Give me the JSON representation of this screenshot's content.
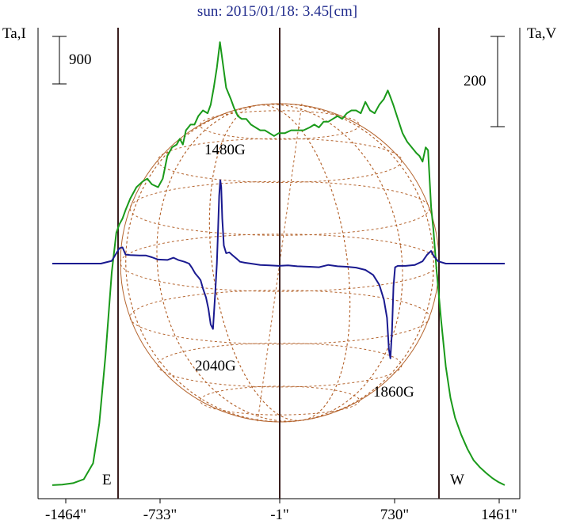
{
  "title": "sun: 2015/01/18: 3.45[cm]",
  "left_axis_label": "Ta,I",
  "right_axis_label": "Ta,V",
  "scale_bar_I": "900",
  "scale_bar_V": "200",
  "limb_east": "E",
  "limb_west": "W",
  "chart_data": {
    "type": "line",
    "title": "sun: 2015/01/18: 3.45[cm]",
    "xlabel": "",
    "ylabel_left": "Ta,I",
    "ylabel_right": "Ta,V",
    "x_ticks": [
      "-1464\"",
      "-733\"",
      "-1\"",
      "730\"",
      "1461\""
    ],
    "x_tick_values": [
      -1464,
      -733,
      -1,
      730,
      1461
    ],
    "xlim": [
      -1464,
      1461
    ],
    "limb_lines": [
      -1010,
      -1,
      985
    ],
    "grid": false,
    "annotations": [
      "1480G",
      "2040G",
      "1860G"
    ],
    "annotation_positions": [
      {
        "text": "1480G",
        "x": -380
      },
      {
        "text": "2040G",
        "x": -380
      },
      {
        "text": "1860G",
        "x": 720
      }
    ],
    "series": [
      {
        "name": "Ta,I",
        "color": "#1a9a1a",
        "units": "K",
        "points": [
          [
            -1464,
            15
          ],
          [
            -1400,
            25
          ],
          [
            -1330,
            50
          ],
          [
            -1260,
            120
          ],
          [
            -1200,
            400
          ],
          [
            -1160,
            1100
          ],
          [
            -1120,
            2300
          ],
          [
            -1080,
            3750
          ],
          [
            -1050,
            4450
          ],
          [
            -1030,
            4600
          ],
          [
            -1010,
            4700
          ],
          [
            -990,
            4850
          ],
          [
            -960,
            5050
          ],
          [
            -920,
            5250
          ],
          [
            -880,
            5350
          ],
          [
            -850,
            5400
          ],
          [
            -820,
            5300
          ],
          [
            -780,
            5250
          ],
          [
            -750,
            5400
          ],
          [
            -720,
            5800
          ],
          [
            -690,
            5950
          ],
          [
            -660,
            6000
          ],
          [
            -640,
            6100
          ],
          [
            -620,
            6000
          ],
          [
            -600,
            6250
          ],
          [
            -570,
            6350
          ],
          [
            -545,
            6350
          ],
          [
            -520,
            6500
          ],
          [
            -490,
            6600
          ],
          [
            -460,
            6550
          ],
          [
            -440,
            6700
          ],
          [
            -420,
            7000
          ],
          [
            -400,
            7350
          ],
          [
            -380,
            7800
          ],
          [
            -360,
            7400
          ],
          [
            -340,
            7000
          ],
          [
            -325,
            6900
          ],
          [
            -310,
            6800
          ],
          [
            -290,
            6650
          ],
          [
            -265,
            6500
          ],
          [
            -240,
            6450
          ],
          [
            -210,
            6450
          ],
          [
            -180,
            6350
          ],
          [
            -150,
            6300
          ],
          [
            -120,
            6250
          ],
          [
            -90,
            6250
          ],
          [
            -60,
            6200
          ],
          [
            -30,
            6150
          ],
          [
            0,
            6200
          ],
          [
            40,
            6200
          ],
          [
            80,
            6250
          ],
          [
            120,
            6250
          ],
          [
            160,
            6250
          ],
          [
            200,
            6300
          ],
          [
            230,
            6350
          ],
          [
            260,
            6300
          ],
          [
            290,
            6400
          ],
          [
            320,
            6400
          ],
          [
            350,
            6450
          ],
          [
            380,
            6500
          ],
          [
            410,
            6450
          ],
          [
            440,
            6550
          ],
          [
            470,
            6600
          ],
          [
            500,
            6600
          ],
          [
            530,
            6550
          ],
          [
            560,
            6750
          ],
          [
            590,
            6600
          ],
          [
            620,
            6550
          ],
          [
            650,
            6700
          ],
          [
            680,
            6800
          ],
          [
            705,
            6950
          ],
          [
            720,
            6850
          ],
          [
            740,
            6700
          ],
          [
            770,
            6450
          ],
          [
            800,
            6200
          ],
          [
            830,
            6050
          ],
          [
            860,
            5950
          ],
          [
            890,
            5850
          ],
          [
            910,
            5800
          ],
          [
            930,
            5700
          ],
          [
            950,
            5950
          ],
          [
            965,
            5900
          ],
          [
            985,
            4900
          ],
          [
            1000,
            4500
          ],
          [
            1020,
            3800
          ],
          [
            1050,
            2900
          ],
          [
            1080,
            2100
          ],
          [
            1110,
            1550
          ],
          [
            1140,
            1200
          ],
          [
            1180,
            900
          ],
          [
            1220,
            650
          ],
          [
            1260,
            450
          ],
          [
            1300,
            330
          ],
          [
            1340,
            230
          ],
          [
            1380,
            140
          ],
          [
            1420,
            70
          ],
          [
            1461,
            15
          ]
        ]
      },
      {
        "name": "Ta,V",
        "color": "#1a1a90",
        "units": "K",
        "points": [
          [
            -1464,
            0
          ],
          [
            -1300,
            0
          ],
          [
            -1150,
            0
          ],
          [
            -1080,
            6
          ],
          [
            -1030,
            34
          ],
          [
            -1010,
            36
          ],
          [
            -990,
            20
          ],
          [
            -960,
            19
          ],
          [
            -900,
            18
          ],
          [
            -860,
            18
          ],
          [
            -820,
            14
          ],
          [
            -780,
            9
          ],
          [
            -720,
            8
          ],
          [
            -680,
            13
          ],
          [
            -650,
            8
          ],
          [
            -610,
            4
          ],
          [
            -580,
            0
          ],
          [
            -560,
            -10
          ],
          [
            -540,
            -22
          ],
          [
            -520,
            -30
          ],
          [
            -505,
            -37
          ],
          [
            -490,
            -55
          ],
          [
            -470,
            -75
          ],
          [
            -455,
            -100
          ],
          [
            -440,
            -135
          ],
          [
            -425,
            -145
          ],
          [
            -410,
            -60
          ],
          [
            -400,
            0
          ],
          [
            -392,
            80
          ],
          [
            -385,
            150
          ],
          [
            -378,
            185
          ],
          [
            -372,
            170
          ],
          [
            -365,
            100
          ],
          [
            -355,
            40
          ],
          [
            -340,
            23
          ],
          [
            -320,
            25
          ],
          [
            -300,
            19
          ],
          [
            -270,
            10
          ],
          [
            -250,
            4
          ],
          [
            -220,
            2
          ],
          [
            -180,
            0
          ],
          [
            -120,
            -3
          ],
          [
            -60,
            -4
          ],
          [
            0,
            -5
          ],
          [
            60,
            -4
          ],
          [
            120,
            -6
          ],
          [
            200,
            -7
          ],
          [
            260,
            -8
          ],
          [
            320,
            -3
          ],
          [
            380,
            -6
          ],
          [
            440,
            -7
          ],
          [
            500,
            -9
          ],
          [
            560,
            -14
          ],
          [
            610,
            -25
          ],
          [
            650,
            -47
          ],
          [
            680,
            -80
          ],
          [
            700,
            -120
          ],
          [
            712,
            -190
          ],
          [
            722,
            -210
          ],
          [
            732,
            -150
          ],
          [
            742,
            -50
          ],
          [
            752,
            -8
          ],
          [
            770,
            -5
          ],
          [
            820,
            -5
          ],
          [
            880,
            -3
          ],
          [
            930,
            5
          ],
          [
            960,
            20
          ],
          [
            985,
            28
          ],
          [
            1000,
            18
          ],
          [
            1030,
            5
          ],
          [
            1080,
            0
          ],
          [
            1200,
            0
          ],
          [
            1350,
            0
          ],
          [
            1461,
            0
          ]
        ]
      }
    ]
  }
}
